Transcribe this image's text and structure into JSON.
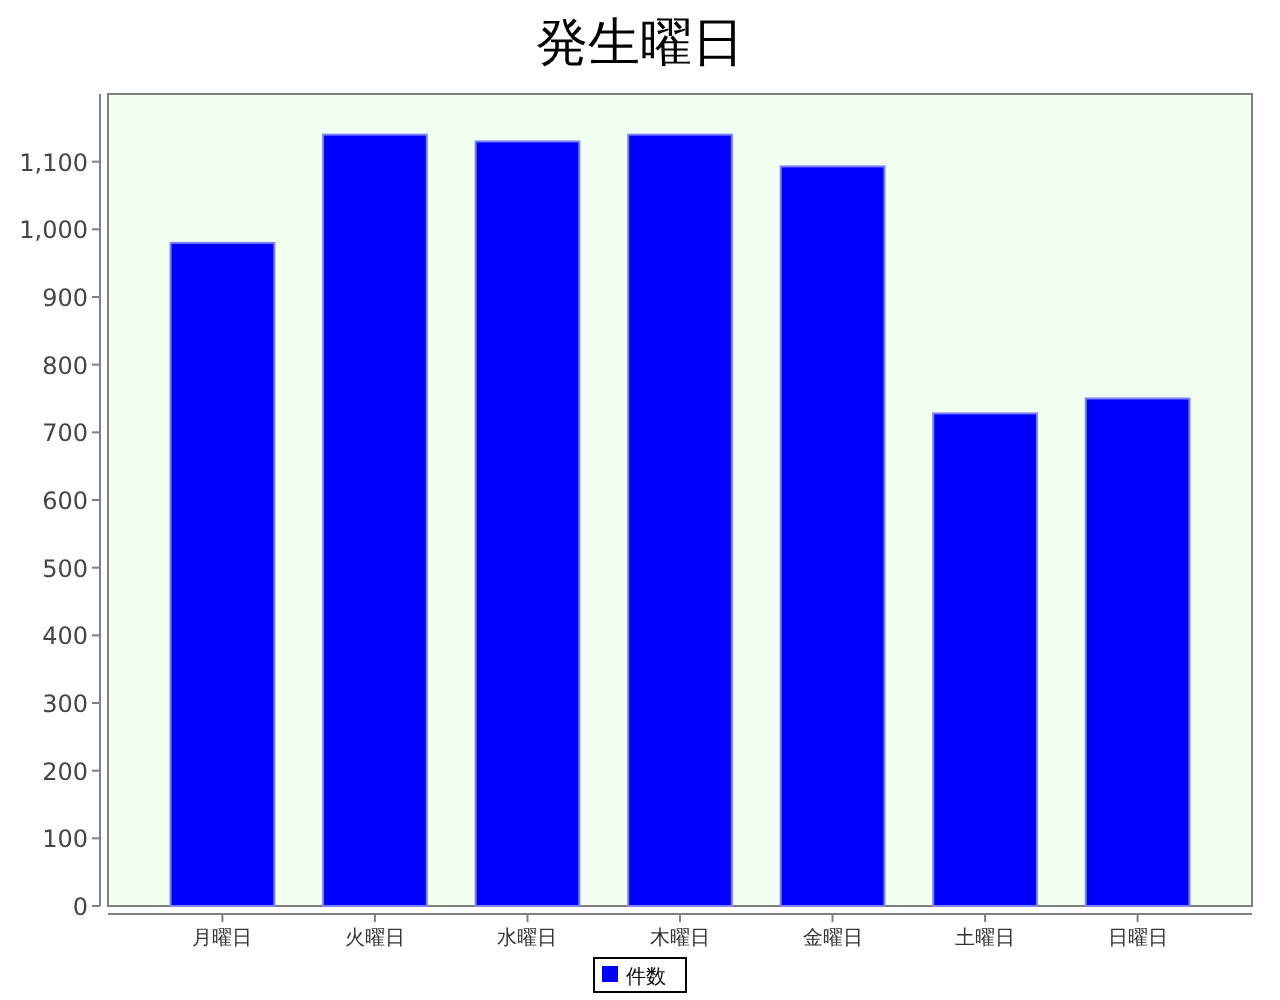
{
  "chart_data": {
    "type": "bar",
    "title": "発生曜日",
    "categories": [
      "月曜日",
      "火曜日",
      "水曜日",
      "木曜日",
      "金曜日",
      "土曜日",
      "日曜日"
    ],
    "series": [
      {
        "name": "件数",
        "color": "#0000ff",
        "values": [
          980,
          1140,
          1130,
          1140,
          1093,
          728,
          750
        ]
      }
    ],
    "ylim": [
      0,
      1200
    ],
    "yticks": [
      0,
      100,
      200,
      300,
      400,
      500,
      600,
      700,
      800,
      900,
      {
        "value": 1000,
        "label": "1,000"
      },
      {
        "value": 1100,
        "label": "1,100"
      }
    ],
    "grid": false,
    "legend": "bottom"
  }
}
